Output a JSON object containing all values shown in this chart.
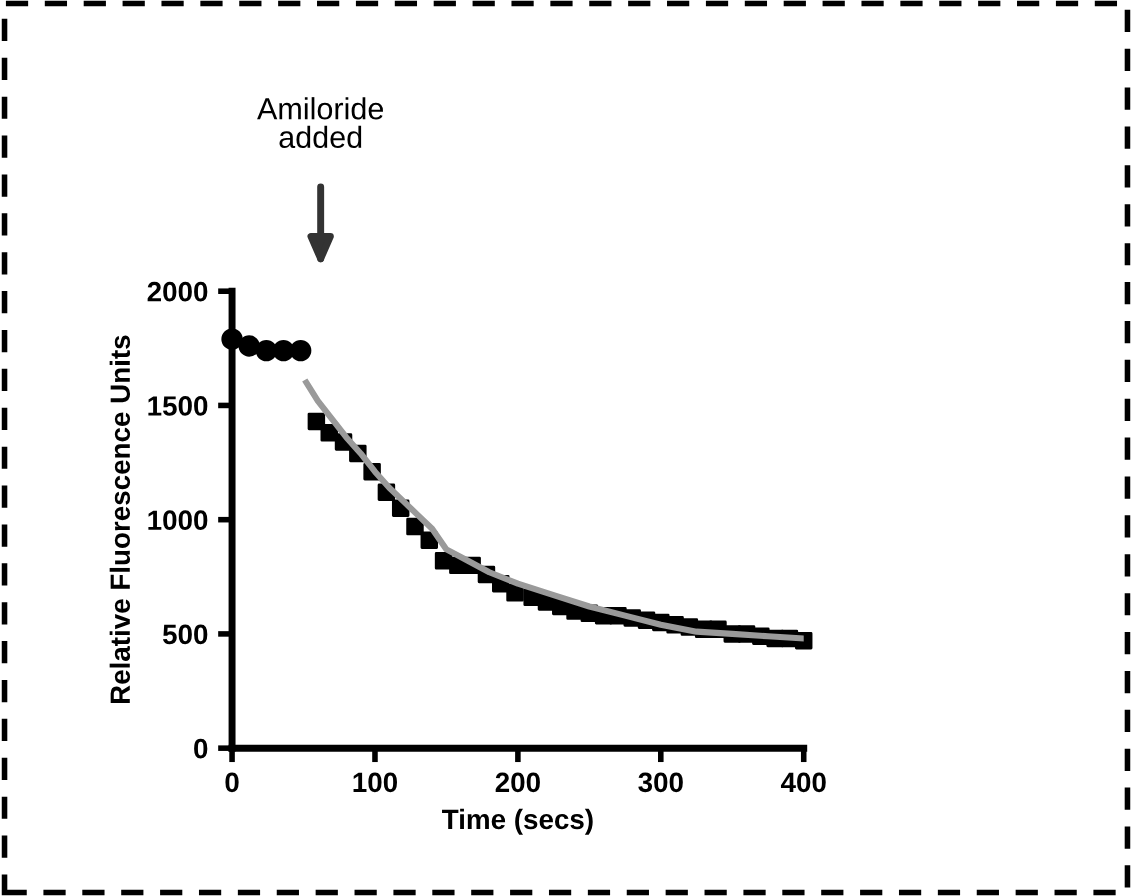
{
  "chart_data": {
    "type": "scatter",
    "xlabel": "Time (secs)",
    "ylabel": "Relative Fluorescence Units",
    "annotations": [
      "Amiloride\nadded"
    ],
    "xlim": [
      0,
      400
    ],
    "ylim": [
      0,
      2000
    ],
    "xticks": [
      0,
      100,
      200,
      300,
      400
    ],
    "yticks": [
      0,
      500,
      1000,
      1500,
      2000
    ],
    "grid": false,
    "series": [
      {
        "marker": "circle",
        "color": "#000000",
        "x": [
          0,
          12,
          24,
          36,
          48
        ],
        "values": [
          1790,
          1760,
          1740,
          1740,
          1740
        ]
      },
      {
        "marker": "square",
        "color": "#000000",
        "x": [
          59,
          68,
          78,
          88,
          98,
          108,
          118,
          128,
          138,
          148,
          158,
          168,
          178,
          188,
          198,
          210,
          220,
          230,
          240,
          250,
          260,
          270,
          280,
          290,
          300,
          310,
          320,
          330,
          340,
          350,
          360,
          370,
          380,
          390,
          400
        ],
        "values": [
          1430,
          1380,
          1340,
          1290,
          1210,
          1120,
          1050,
          970,
          910,
          820,
          800,
          800,
          760,
          720,
          680,
          660,
          640,
          620,
          600,
          590,
          580,
          580,
          570,
          560,
          550,
          540,
          530,
          520,
          520,
          500,
          500,
          490,
          480,
          480,
          470
        ]
      },
      {
        "type": "line",
        "marker": "none",
        "line_style": "solid",
        "color": "#9a9a9a",
        "x": [
          52,
          60,
          70,
          80,
          90,
          100,
          110,
          120,
          130,
          140,
          150,
          165,
          180,
          200,
          225,
          250,
          275,
          300,
          325,
          350,
          375,
          400
        ],
        "values": [
          1600,
          1520,
          1440,
          1360,
          1290,
          1210,
          1140,
          1080,
          1020,
          960,
          870,
          820,
          770,
          720,
          670,
          620,
          580,
          540,
          510,
          500,
          490,
          480
        ]
      }
    ]
  }
}
